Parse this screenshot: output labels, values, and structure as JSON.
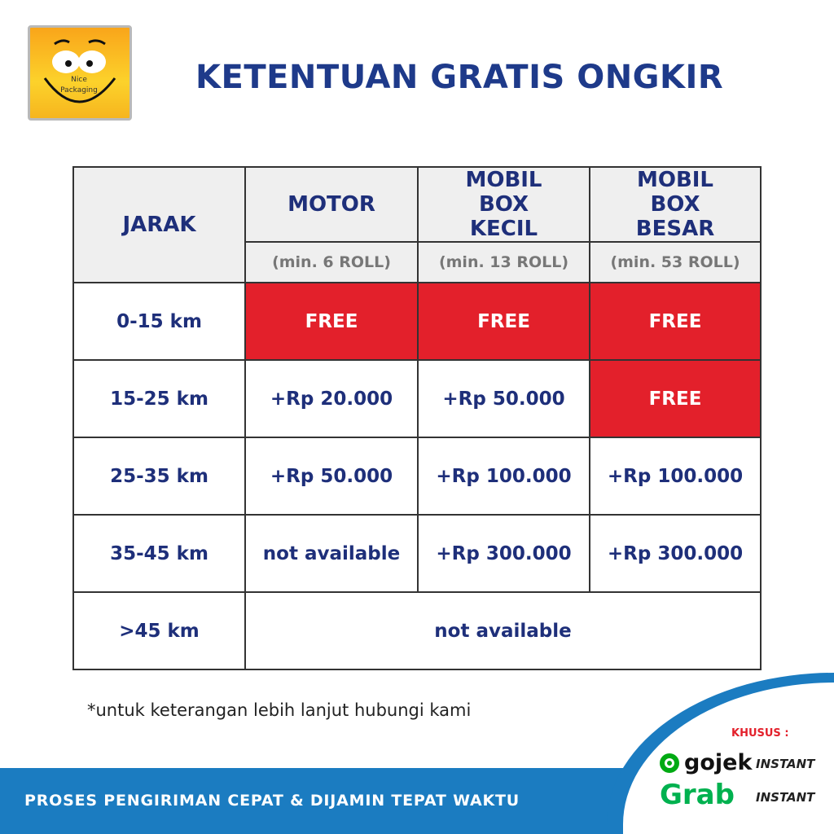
{
  "logo": {
    "text1": "Nice",
    "text2": "Packaging"
  },
  "title": "KETENTUAN GRATIS ONGKIR",
  "table": {
    "header": {
      "jarak": "JARAK",
      "cols": [
        {
          "name": "MOTOR",
          "min": "(min. 6 ROLL)"
        },
        {
          "name": "MOBIL BOX KECIL",
          "min": "(min. 13 ROLL)"
        },
        {
          "name": "MOBIL BOX BESAR",
          "min": "(min. 53 ROLL)"
        }
      ]
    },
    "rows": [
      {
        "jarak": "0-15 km",
        "cells": [
          "FREE",
          "FREE",
          "FREE"
        ]
      },
      {
        "jarak": "15-25 km",
        "cells": [
          "+Rp 20.000",
          "+Rp 50.000",
          "FREE"
        ]
      },
      {
        "jarak": "25-35 km",
        "cells": [
          "+Rp 50.000",
          "+Rp 100.000",
          "+Rp 100.000"
        ]
      },
      {
        "jarak": "35-45 km",
        "cells": [
          "not available",
          "+Rp 300.000",
          "+Rp 300.000"
        ]
      }
    ],
    "last_row": {
      "jarak": ">45 km",
      "value": "not available"
    }
  },
  "note": "*untuk keterangan lebih lanjut hubungi kami",
  "footer": "PROSES PENGIRIMAN CEPAT & DIJAMIN TEPAT WAKTU",
  "couriers": {
    "label": "KHUSUS :",
    "gojek": "gojek",
    "grab": "Grab",
    "instant": "INSTANT"
  },
  "colors": {
    "navy": "#1e2f7a",
    "red": "#e3202b",
    "blue": "#1b7cc1",
    "green": "#00b14f"
  }
}
